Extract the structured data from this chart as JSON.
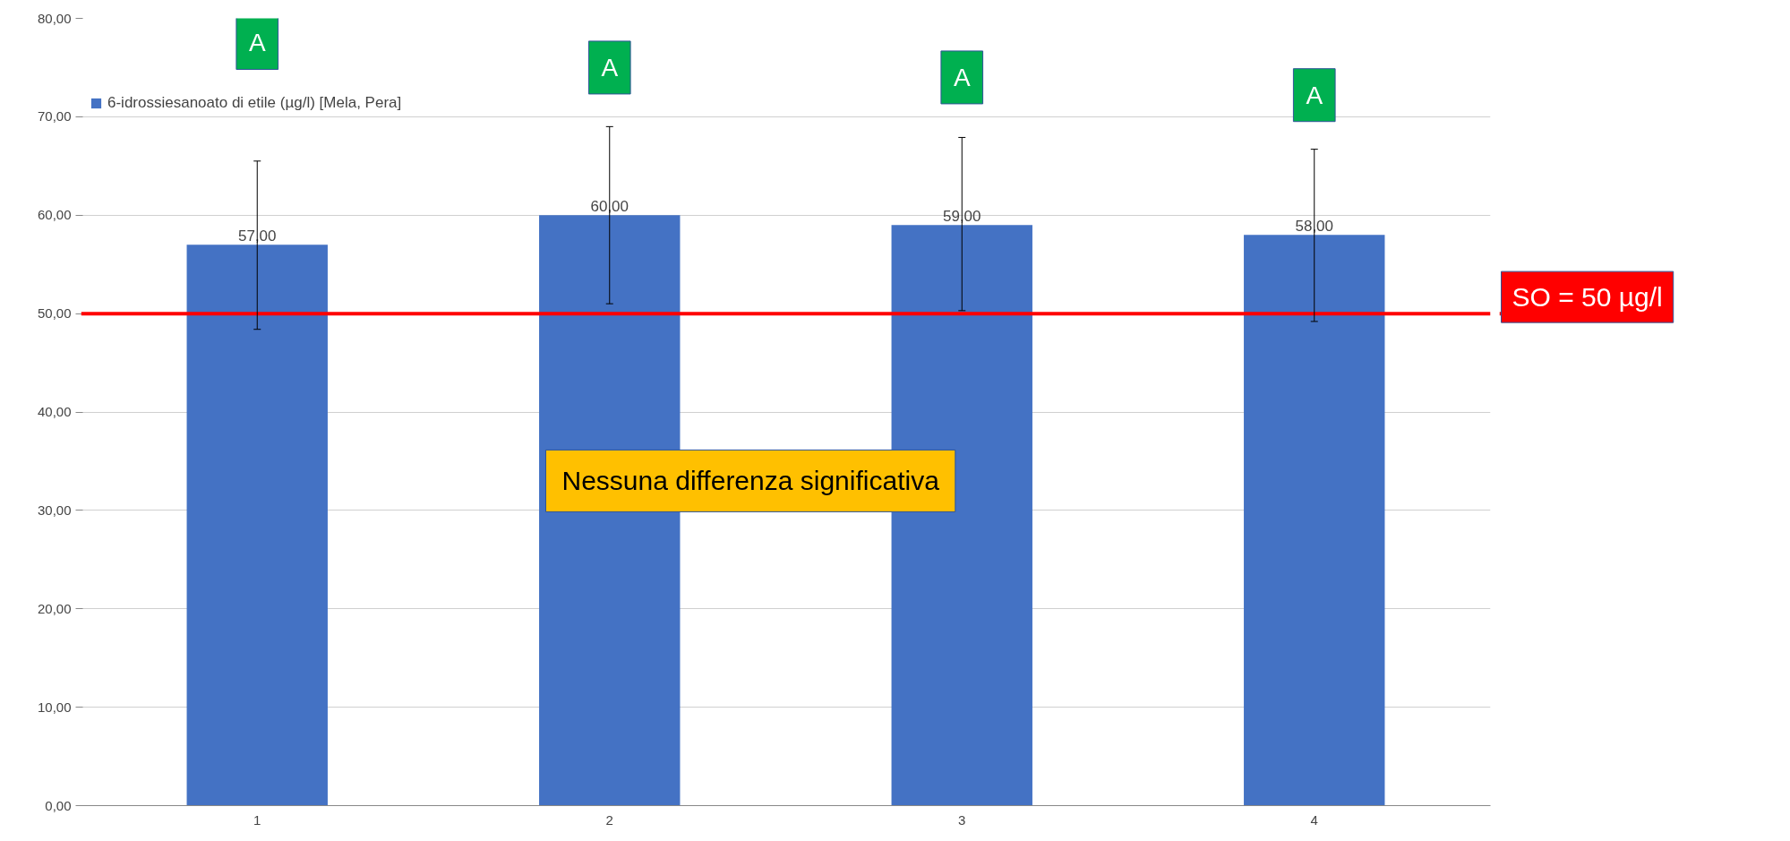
{
  "chart_data": {
    "type": "bar",
    "categories": [
      "1",
      "2",
      "3",
      "4"
    ],
    "series": [
      {
        "name": "6-idrossiesanoato di etile (µg/l) [Mela, Pera]",
        "color": "#4472c4",
        "values": [
          57,
          60,
          59,
          58
        ],
        "errors": [
          [
            48.4,
            65.5
          ],
          [
            51.0,
            69.0
          ],
          [
            50.3,
            67.9
          ],
          [
            49.2,
            66.7
          ]
        ],
        "value_labels": [
          "57,00",
          "60,00",
          "59,00",
          "58,00"
        ]
      }
    ],
    "ylim": [
      0,
      80
    ],
    "yticks": [
      {
        "value": 0,
        "label": "0,00"
      },
      {
        "value": 10,
        "label": "10,00"
      },
      {
        "value": 20,
        "label": "20,00"
      },
      {
        "value": 30,
        "label": "30,00"
      },
      {
        "value": 40,
        "label": "40,00"
      },
      {
        "value": 50,
        "label": "50,00"
      },
      {
        "value": 60,
        "label": "60,00"
      },
      {
        "value": 70,
        "label": "70,00"
      },
      {
        "value": 80,
        "label": "80,00"
      }
    ],
    "grid": "y",
    "legend": "top left",
    "ref_lines": [
      {
        "axis": "y",
        "value": 50,
        "label": "SO = 50 µg/l",
        "color": "#ff0000"
      }
    ],
    "annotations": [
      "A",
      "A",
      "A",
      "A",
      "Nessuna differenza significativa"
    ]
  }
}
